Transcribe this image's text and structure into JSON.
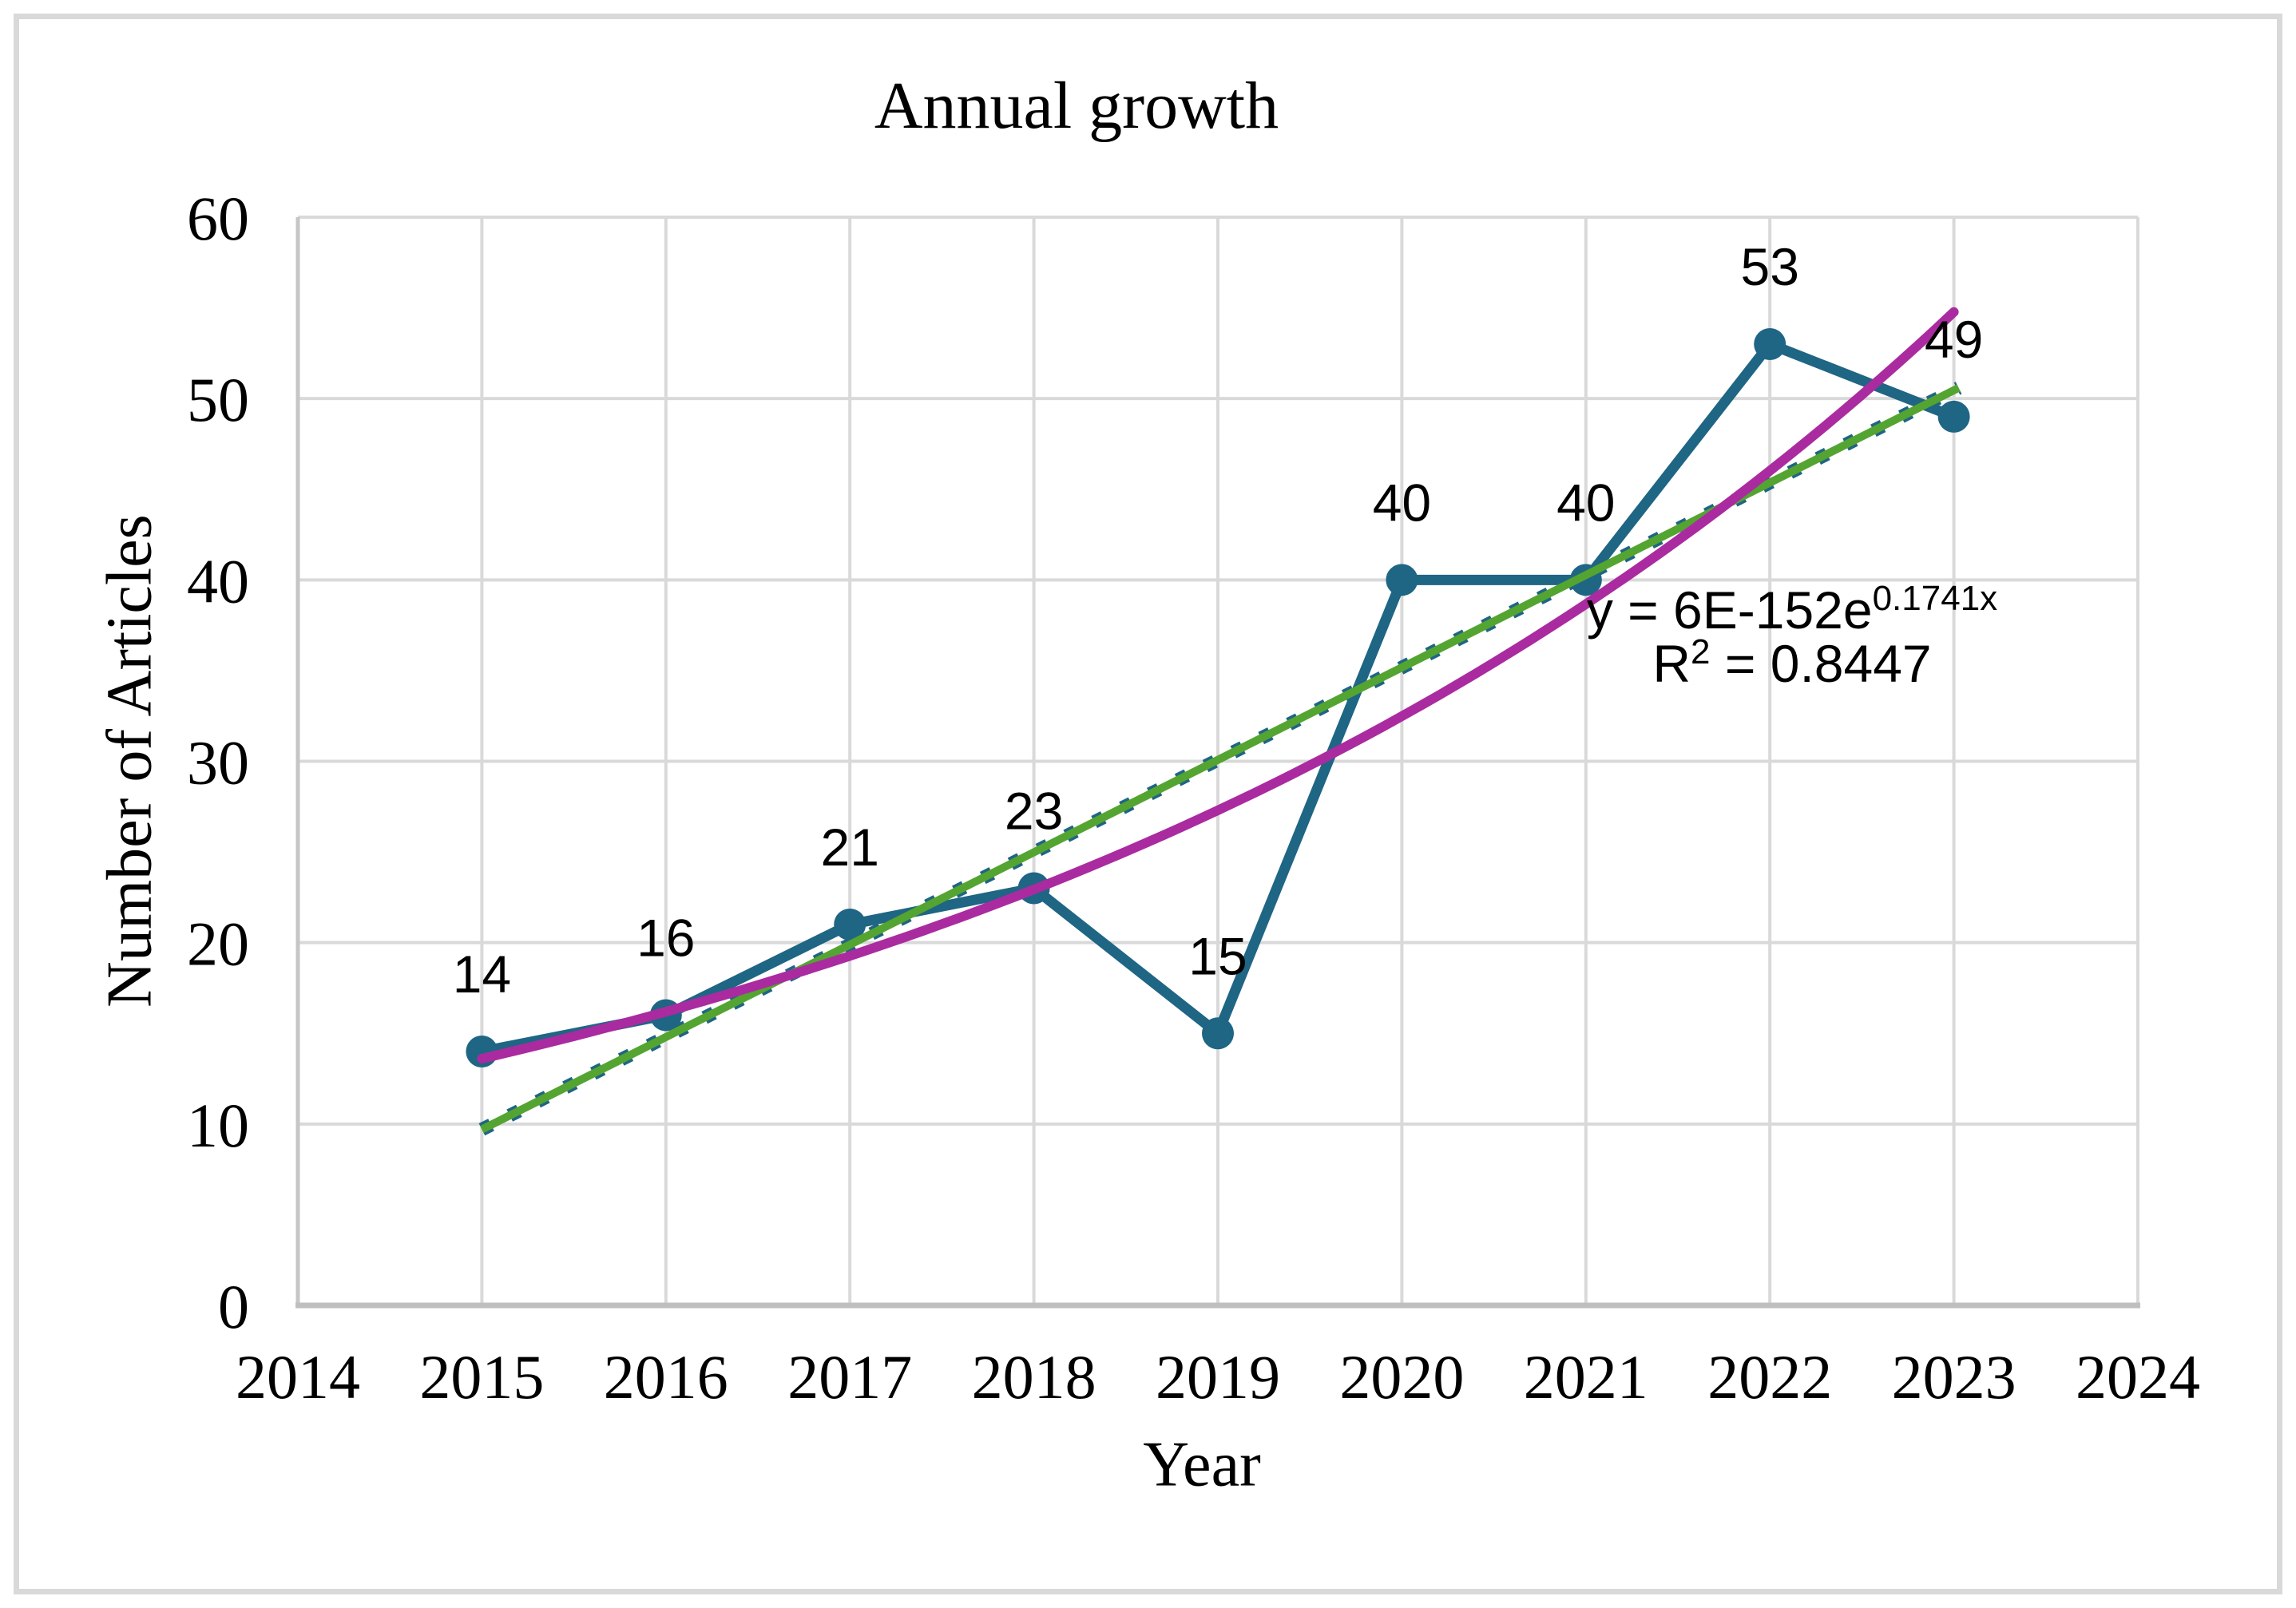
{
  "figure": {
    "background": "#FFFFFF",
    "border_color": "#D9D9D9"
  },
  "chart_data": {
    "type": "line",
    "title": "Annual growth",
    "xlabel": "Year",
    "ylabel": "Number of Articles",
    "x": [
      2015,
      2016,
      2017,
      2018,
      2019,
      2020,
      2021,
      2022,
      2023
    ],
    "series": [
      {
        "name": "Number of Articles",
        "values": [
          14,
          16,
          21,
          23,
          15,
          40,
          40,
          53,
          49
        ],
        "color": "#1F6584",
        "marker": "circle",
        "data_labels": [
          "14",
          "16",
          "21",
          "23",
          "15",
          "40",
          "40",
          "53",
          "49"
        ]
      }
    ],
    "xlim": [
      2014,
      2024
    ],
    "ylim": [
      0,
      60
    ],
    "xticks": [
      2014,
      2015,
      2016,
      2017,
      2018,
      2019,
      2020,
      2021,
      2022,
      2023,
      2024
    ],
    "yticks": [
      0,
      10,
      20,
      30,
      40,
      50,
      60
    ],
    "grid": true,
    "gridline_color": "#D9D9D9",
    "axis_color": "#BFBFBF",
    "legend": "none",
    "trendlines": [
      {
        "kind": "exponential",
        "color": "#AA2BA0",
        "coef_a": 6e-152,
        "coef_b": 0.1741,
        "x_start": 2015,
        "x_end": 2023,
        "equation": "y = 6E-152e",
        "equation_exponent": "0.1741x",
        "r2_base": "R",
        "r2_sup": "2",
        "r2_rest": " = 0.8447"
      },
      {
        "kind": "linear",
        "color": "#54A432",
        "underlay_color": "#1F6584",
        "underlay_style": "dashed",
        "slope": 5.1,
        "intercept": -10266.8,
        "x_start": 2015,
        "x_end": 2023
      }
    ]
  }
}
